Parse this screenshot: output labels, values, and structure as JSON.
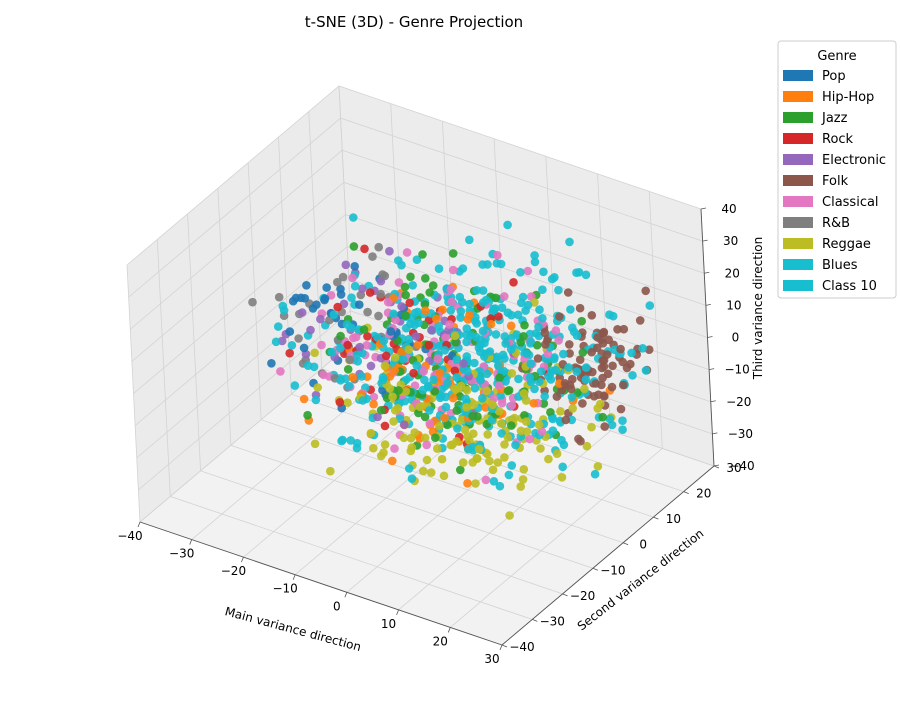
{
  "chart_data": {
    "type": "scatter",
    "title": "t-SNE (3D) - Genre Projection",
    "xlabel": "Main variance direction",
    "ylabel": "Second variance direction",
    "zlabel": "Third variance direction",
    "xlim": [
      -40,
      30
    ],
    "ylim": [
      -40,
      30
    ],
    "zlim": [
      -40,
      40
    ],
    "xticks": [
      -40,
      -30,
      -20,
      -10,
      0,
      10,
      20,
      30
    ],
    "yticks": [
      -40,
      -30,
      -20,
      -10,
      0,
      10,
      20,
      30
    ],
    "zticks": [
      -40,
      -30,
      -20,
      -10,
      0,
      10,
      20,
      30,
      40
    ],
    "grid": true,
    "legend": {
      "title": "Genre",
      "placement": "top-right, outside plot"
    },
    "series": [
      {
        "name": "Pop",
        "color": "#1f77b4",
        "center": [
          -18,
          -4,
          4
        ],
        "spread": [
          10,
          10,
          10
        ],
        "count": 40
      },
      {
        "name": "Hip-Hop",
        "color": "#ff7f0e",
        "center": [
          -5,
          0,
          -8
        ],
        "spread": [
          12,
          12,
          12
        ],
        "count": 70
      },
      {
        "name": "Jazz",
        "color": "#2ca02c",
        "center": [
          0,
          0,
          0
        ],
        "spread": [
          14,
          14,
          14
        ],
        "count": 110
      },
      {
        "name": "Rock",
        "color": "#d62728",
        "center": [
          -10,
          2,
          -6
        ],
        "spread": [
          14,
          12,
          12
        ],
        "count": 40
      },
      {
        "name": "Electronic",
        "color": "#9467bd",
        "center": [
          -15,
          0,
          0
        ],
        "spread": [
          12,
          12,
          12
        ],
        "count": 40
      },
      {
        "name": "Folk",
        "color": "#8c564b",
        "center": [
          20,
          10,
          2
        ],
        "spread": [
          6,
          8,
          9
        ],
        "count": 90
      },
      {
        "name": "Classical",
        "color": "#e377c2",
        "center": [
          -2,
          -2,
          0
        ],
        "spread": [
          14,
          14,
          14
        ],
        "count": 110
      },
      {
        "name": "R&B",
        "color": "#7f7f7f",
        "center": [
          -20,
          -5,
          5
        ],
        "spread": [
          8,
          10,
          10
        ],
        "count": 35
      },
      {
        "name": "Reggae",
        "color": "#bcbd22",
        "center": [
          5,
          -5,
          -12
        ],
        "spread": [
          14,
          12,
          12
        ],
        "count": 170
      },
      {
        "name": "Blues",
        "color": "#17becf",
        "center": [
          0,
          0,
          0
        ],
        "spread": [
          16,
          15,
          15
        ],
        "count": 260
      },
      {
        "name": "Class 10",
        "color": "#17becf",
        "center": [
          5,
          0,
          5
        ],
        "spread": [
          15,
          15,
          15
        ],
        "count": 160
      }
    ]
  }
}
